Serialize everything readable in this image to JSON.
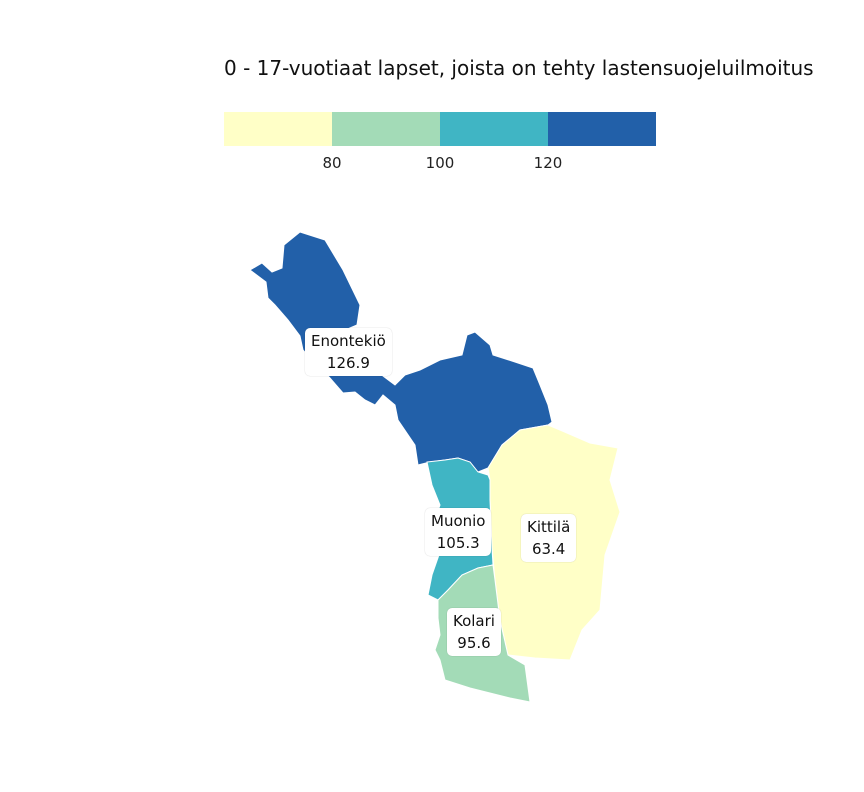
{
  "title": "0 - 17-vuotiaat lapset, joista on tehty lastensuojeluilmoitus",
  "legend": {
    "colors": [
      "#ffffc7",
      "#a3dbb7",
      "#40b5c4",
      "#2260a9"
    ],
    "ticks": [
      "80",
      "100",
      "120"
    ]
  },
  "regions": [
    {
      "name": "Enontekiö",
      "value": "126.9",
      "color": "#2260a9"
    },
    {
      "name": "Muonio",
      "value": "105.3",
      "color": "#40b5c4"
    },
    {
      "name": "Kittilä",
      "value": "63.4",
      "color": "#ffffc7"
    },
    {
      "name": "Kolari",
      "value": "95.6",
      "color": "#a3dbb7"
    }
  ]
}
